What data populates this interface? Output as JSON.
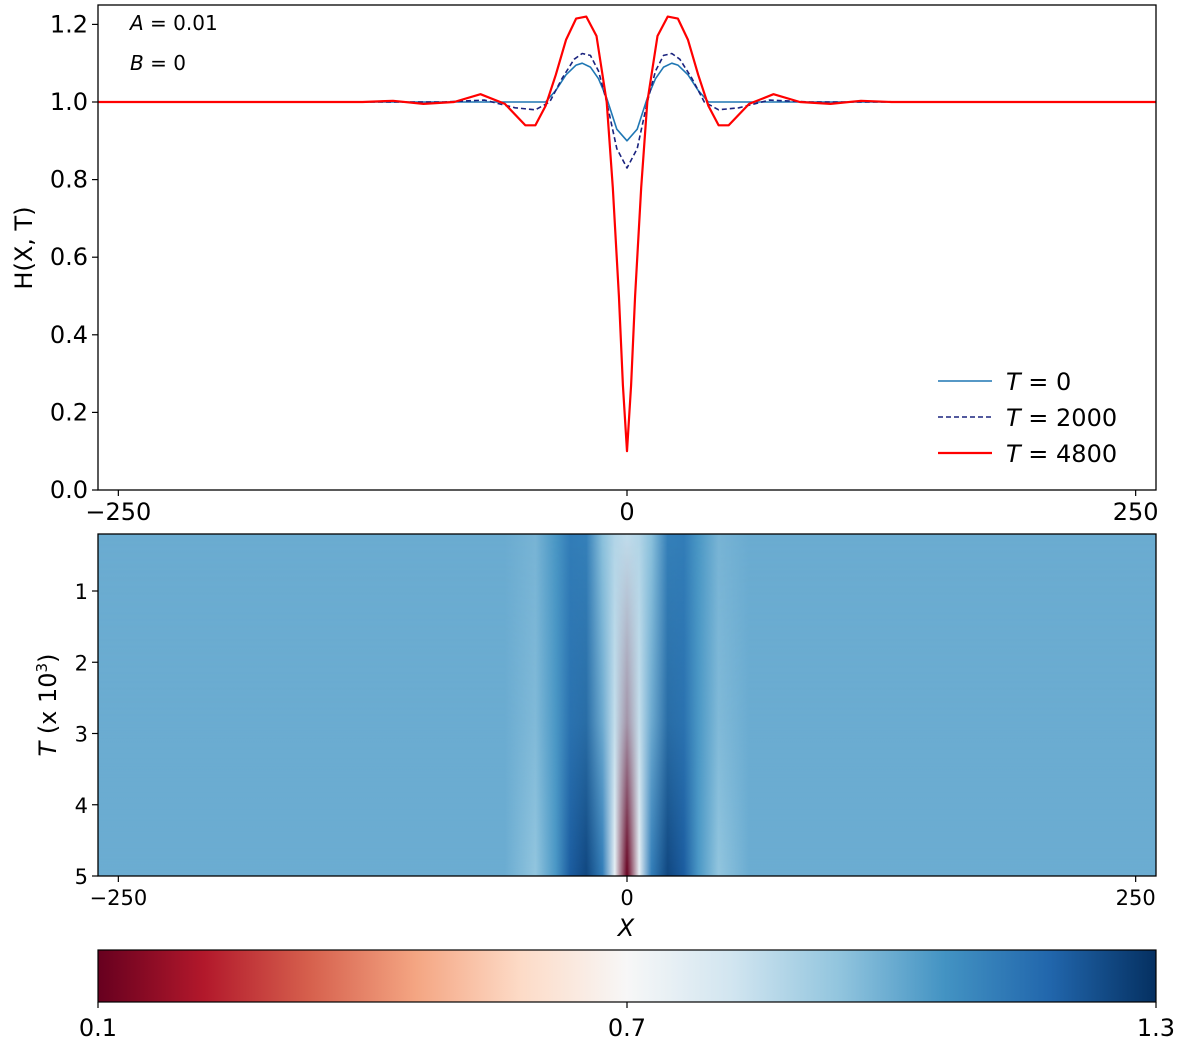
{
  "chart_data": [
    {
      "type": "line",
      "ylabel": "H(X, T)",
      "xlim": [
        -260,
        260
      ],
      "ylim": [
        0.0,
        1.25
      ],
      "x_ticks": [
        -250,
        0,
        250
      ],
      "x_tick_labels": [
        "−250",
        "0",
        "250"
      ],
      "y_ticks": [
        0.0,
        0.2,
        0.4,
        0.6,
        0.8,
        1.0,
        1.2
      ],
      "y_tick_labels": [
        "0.0",
        "0.2",
        "0.4",
        "0.6",
        "0.8",
        "1.0",
        "1.2"
      ],
      "grid": false,
      "annotations": [
        {
          "var": "A",
          "text": " = 0.01"
        },
        {
          "var": "B",
          "text": " = 0"
        }
      ],
      "legend": {
        "placement": "lower-right",
        "entries": [
          {
            "var": "T",
            "text": " = 0"
          },
          {
            "var": "T",
            "text": " = 2000"
          },
          {
            "var": "T",
            "text": " = 4800"
          }
        ]
      },
      "series": [
        {
          "name": "T = 0",
          "color": "#1f77b4",
          "style": "solid",
          "x": [
            -260,
            -40,
            -35,
            -30,
            -25,
            -22,
            -18,
            -14,
            -10,
            -5,
            0,
            5,
            10,
            14,
            18,
            22,
            25,
            30,
            35,
            40,
            260
          ],
          "y": [
            1.0,
            1.0,
            1.03,
            1.07,
            1.095,
            1.1,
            1.09,
            1.06,
            1.01,
            0.93,
            0.9,
            0.93,
            1.01,
            1.06,
            1.09,
            1.1,
            1.095,
            1.07,
            1.03,
            1.0,
            1.0
          ]
        },
        {
          "name": "T = 2000",
          "color": "#1a237e",
          "style": "dashed",
          "x": [
            -260,
            -90,
            -70,
            -55,
            -45,
            -38,
            -32,
            -26,
            -22,
            -18,
            -14,
            -10,
            -5,
            0,
            5,
            10,
            14,
            18,
            22,
            26,
            32,
            38,
            45,
            55,
            70,
            90,
            260
          ],
          "y": [
            1.0,
            1.0,
            1.005,
            0.985,
            0.98,
            1.0,
            1.06,
            1.11,
            1.125,
            1.12,
            1.08,
            1.0,
            0.88,
            0.83,
            0.88,
            1.0,
            1.08,
            1.12,
            1.125,
            1.11,
            1.06,
            1.0,
            0.98,
            0.985,
            1.005,
            1.0,
            1.0
          ]
        },
        {
          "name": "T = 4800",
          "color": "#ff0000",
          "style": "solid",
          "x": [
            -260,
            -130,
            -115,
            -100,
            -85,
            -72,
            -60,
            -50,
            -45,
            -40,
            -35,
            -30,
            -25,
            -20,
            -15,
            -10,
            -7,
            -4,
            -2,
            0,
            2,
            4,
            7,
            10,
            15,
            20,
            25,
            30,
            35,
            40,
            45,
            50,
            60,
            72,
            85,
            100,
            115,
            130,
            260
          ],
          "y": [
            1.0,
            1.0,
            1.003,
            0.995,
            1.0,
            1.02,
            0.995,
            0.94,
            0.94,
            0.99,
            1.07,
            1.16,
            1.215,
            1.22,
            1.17,
            1.0,
            0.78,
            0.5,
            0.27,
            0.1,
            0.27,
            0.5,
            0.78,
            1.0,
            1.17,
            1.22,
            1.215,
            1.16,
            1.07,
            0.99,
            0.94,
            0.94,
            0.995,
            1.02,
            1.0,
            0.995,
            1.003,
            1.0,
            1.0
          ]
        }
      ]
    },
    {
      "type": "heatmap",
      "xlabel": "X",
      "ylabel_var": "T",
      "ylabel_rest": " (x 10",
      "ylabel_sup": "3",
      "ylabel_close": ")",
      "xlim": [
        -260,
        260
      ],
      "ylim": [
        0.2,
        5.0
      ],
      "y_inverted": true,
      "x_ticks": [
        -250,
        0,
        250
      ],
      "x_tick_labels": [
        "−250",
        "0",
        "250"
      ],
      "y_ticks": [
        1,
        2,
        3,
        4,
        5
      ],
      "y_tick_labels": [
        "1",
        "2",
        "3",
        "4",
        "5"
      ],
      "colormap": "RdBu",
      "colorbar": {
        "range": [
          0.1,
          1.3
        ],
        "ticks": [
          0.1,
          0.7,
          1.3
        ],
        "tick_labels": [
          "0.1",
          "0.7",
          "1.3"
        ],
        "stops": [
          "#67001f",
          "#b2182b",
          "#d6604d",
          "#f4a582",
          "#fddbc7",
          "#f7f7f7",
          "#d1e5f0",
          "#92c5de",
          "#4393c3",
          "#2166ac",
          "#053061"
        ]
      },
      "band_profile_x": [
        -260,
        -60,
        -45,
        -35,
        -28,
        -20,
        -12,
        -6,
        0,
        6,
        12,
        20,
        28,
        35,
        45,
        60,
        260
      ],
      "band_profile_top": [
        1.0,
        1.0,
        0.98,
        1.05,
        1.12,
        1.11,
        0.95,
        0.88,
        0.85,
        0.88,
        0.95,
        1.11,
        1.12,
        1.05,
        0.98,
        1.0,
        1.0
      ],
      "band_profile_bottom": [
        1.0,
        1.0,
        0.94,
        1.05,
        1.2,
        1.25,
        1.12,
        0.75,
        0.1,
        0.75,
        1.12,
        1.25,
        1.2,
        1.05,
        0.94,
        1.0,
        1.0
      ]
    }
  ]
}
